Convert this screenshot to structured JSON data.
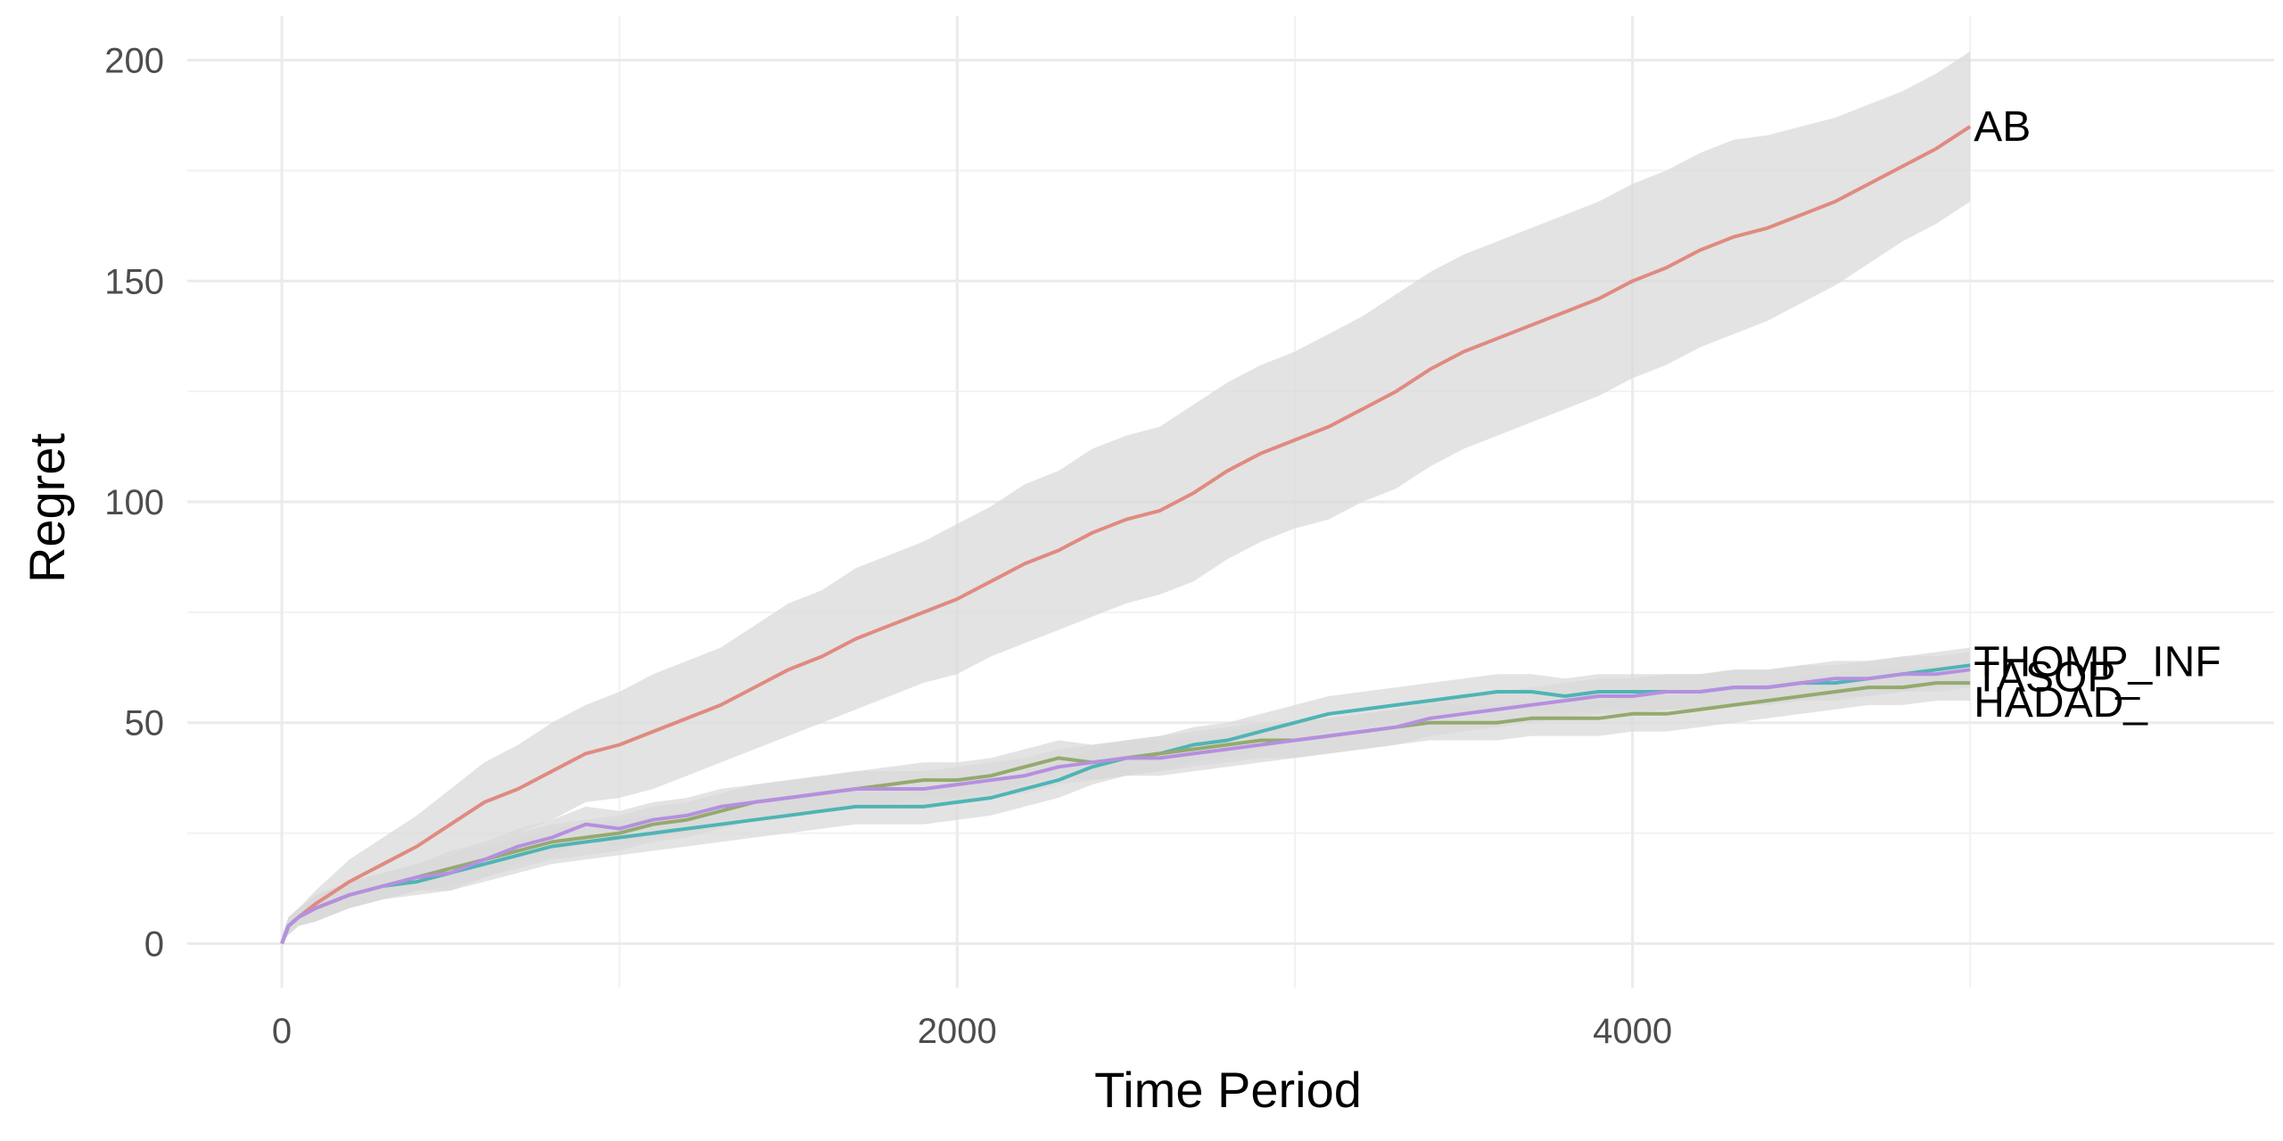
{
  "chart_data": {
    "type": "line",
    "title": "",
    "xlabel": "Time Period",
    "ylabel": "Regret",
    "xlim": [
      -280,
      5900
    ],
    "ylim": [
      -10,
      210
    ],
    "x_ticks": [
      0,
      2000,
      4000
    ],
    "x_tick_labels": [
      "0",
      "2000",
      "4000"
    ],
    "y_ticks": [
      0,
      50,
      100,
      150,
      200
    ],
    "y_tick_labels": [
      "0",
      "50",
      "100",
      "150",
      "200"
    ],
    "grid": true,
    "legend": "none (direct labels at line ends)",
    "band_color": "#d9d9d9",
    "series": [
      {
        "name": "AB",
        "color": "#e08a80",
        "x": [
          0,
          20,
          50,
          100,
          200,
          300,
          400,
          500,
          600,
          700,
          800,
          900,
          1000,
          1100,
          1200,
          1300,
          1400,
          1500,
          1600,
          1700,
          1800,
          1900,
          2000,
          2100,
          2200,
          2300,
          2400,
          2500,
          2600,
          2700,
          2800,
          2900,
          3000,
          3100,
          3200,
          3300,
          3400,
          3500,
          3600,
          3700,
          3800,
          3900,
          4000,
          4100,
          4200,
          4300,
          4400,
          4500,
          4600,
          4700,
          4800,
          4900,
          5000
        ],
        "y": [
          0,
          4,
          6,
          9,
          14,
          18,
          22,
          27,
          32,
          35,
          39,
          43,
          45,
          48,
          51,
          54,
          58,
          62,
          65,
          69,
          72,
          75,
          78,
          82,
          86,
          89,
          93,
          96,
          98,
          102,
          107,
          111,
          114,
          117,
          121,
          125,
          130,
          134,
          137,
          140,
          143,
          146,
          150,
          153,
          157,
          160,
          162,
          165,
          168,
          172,
          176,
          180,
          185
        ],
        "lower": [
          0,
          2,
          4,
          6,
          9,
          12,
          15,
          19,
          23,
          25,
          28,
          32,
          33,
          35,
          38,
          41,
          44,
          47,
          50,
          53,
          56,
          59,
          61,
          65,
          68,
          71,
          74,
          77,
          79,
          82,
          87,
          91,
          94,
          96,
          100,
          103,
          108,
          112,
          115,
          118,
          121,
          124,
          128,
          131,
          135,
          138,
          141,
          145,
          149,
          154,
          159,
          163,
          168
        ],
        "upper": [
          2,
          6,
          8,
          12,
          19,
          24,
          29,
          35,
          41,
          45,
          50,
          54,
          57,
          61,
          64,
          67,
          72,
          77,
          80,
          85,
          88,
          91,
          95,
          99,
          104,
          107,
          112,
          115,
          117,
          122,
          127,
          131,
          134,
          138,
          142,
          147,
          152,
          156,
          159,
          162,
          165,
          168,
          172,
          175,
          179,
          182,
          183,
          185,
          187,
          190,
          193,
          197,
          202
        ]
      },
      {
        "name": "THOMP_INF",
        "color": "#4fb4b4",
        "x": [
          0,
          20,
          50,
          100,
          200,
          300,
          400,
          500,
          600,
          700,
          800,
          900,
          1000,
          1100,
          1200,
          1300,
          1400,
          1500,
          1600,
          1700,
          1800,
          1900,
          2000,
          2100,
          2200,
          2300,
          2400,
          2500,
          2600,
          2700,
          2800,
          2900,
          3000,
          3100,
          3200,
          3300,
          3400,
          3500,
          3600,
          3700,
          3800,
          3900,
          4000,
          4100,
          4200,
          4300,
          4400,
          4500,
          4600,
          4700,
          4800,
          4900,
          5000
        ],
        "y": [
          0,
          4,
          6,
          8,
          11,
          13,
          14,
          16,
          18,
          20,
          22,
          23,
          24,
          25,
          26,
          27,
          28,
          29,
          30,
          31,
          31,
          31,
          32,
          33,
          35,
          37,
          40,
          42,
          43,
          45,
          46,
          48,
          50,
          52,
          53,
          54,
          55,
          56,
          57,
          57,
          56,
          57,
          57,
          57,
          57,
          58,
          58,
          59,
          59,
          60,
          61,
          62,
          63
        ],
        "lower": [
          0,
          2,
          4,
          5,
          8,
          10,
          11,
          12,
          14,
          16,
          18,
          19,
          20,
          21,
          22,
          23,
          24,
          25,
          26,
          27,
          27,
          27,
          28,
          29,
          31,
          33,
          36,
          38,
          39,
          41,
          42,
          44,
          46,
          48,
          49,
          50,
          51,
          52,
          53,
          53,
          52,
          53,
          53,
          53,
          53,
          54,
          54,
          55,
          55,
          56,
          57,
          58,
          59
        ],
        "upper": [
          1,
          6,
          8,
          11,
          14,
          16,
          17,
          20,
          22,
          24,
          26,
          27,
          28,
          29,
          30,
          31,
          32,
          33,
          34,
          35,
          35,
          35,
          36,
          37,
          39,
          41,
          44,
          46,
          47,
          49,
          50,
          52,
          54,
          56,
          57,
          58,
          59,
          60,
          61,
          61,
          60,
          61,
          61,
          61,
          61,
          62,
          62,
          63,
          63,
          64,
          65,
          66,
          67
        ]
      },
      {
        "name": "HADAD_",
        "color": "#93aa6e",
        "x": [
          0,
          20,
          50,
          100,
          200,
          300,
          400,
          500,
          600,
          700,
          800,
          900,
          1000,
          1100,
          1200,
          1300,
          1400,
          1500,
          1600,
          1700,
          1800,
          1900,
          2000,
          2100,
          2200,
          2300,
          2400,
          2500,
          2600,
          2700,
          2800,
          2900,
          3000,
          3100,
          3200,
          3300,
          3400,
          3500,
          3600,
          3700,
          3800,
          3900,
          4000,
          4100,
          4200,
          4300,
          4400,
          4500,
          4600,
          4700,
          4800,
          4900,
          5000
        ],
        "y": [
          0,
          4,
          6,
          8,
          11,
          13,
          15,
          17,
          19,
          21,
          23,
          24,
          25,
          27,
          28,
          30,
          32,
          33,
          34,
          35,
          36,
          37,
          37,
          38,
          40,
          42,
          41,
          42,
          43,
          44,
          45,
          46,
          46,
          47,
          48,
          49,
          50,
          50,
          50,
          51,
          51,
          51,
          52,
          52,
          53,
          54,
          55,
          56,
          57,
          58,
          58,
          59,
          59
        ],
        "lower": [
          0,
          2,
          4,
          5,
          8,
          10,
          12,
          13,
          15,
          17,
          19,
          20,
          21,
          23,
          24,
          26,
          28,
          29,
          30,
          31,
          32,
          33,
          33,
          34,
          36,
          38,
          37,
          38,
          39,
          40,
          41,
          42,
          42,
          43,
          44,
          45,
          46,
          46,
          46,
          47,
          47,
          47,
          48,
          48,
          49,
          50,
          51,
          52,
          53,
          54,
          54,
          55,
          55
        ],
        "upper": [
          1,
          6,
          8,
          11,
          14,
          16,
          18,
          21,
          23,
          25,
          27,
          28,
          29,
          31,
          32,
          34,
          36,
          37,
          38,
          39,
          40,
          41,
          41,
          42,
          44,
          46,
          45,
          46,
          47,
          48,
          49,
          50,
          50,
          51,
          52,
          53,
          54,
          54,
          54,
          55,
          55,
          55,
          56,
          56,
          57,
          58,
          59,
          60,
          61,
          62,
          62,
          63,
          63
        ]
      },
      {
        "name": "TASOP_",
        "color": "#b68fe0",
        "x": [
          0,
          20,
          50,
          100,
          200,
          300,
          400,
          500,
          600,
          700,
          800,
          900,
          1000,
          1100,
          1200,
          1300,
          1400,
          1500,
          1600,
          1700,
          1800,
          1900,
          2000,
          2100,
          2200,
          2300,
          2400,
          2500,
          2600,
          2700,
          2800,
          2900,
          3000,
          3100,
          3200,
          3300,
          3400,
          3500,
          3600,
          3700,
          3800,
          3900,
          4000,
          4100,
          4200,
          4300,
          4400,
          4500,
          4600,
          4700,
          4800,
          4900,
          5000
        ],
        "y": [
          0,
          4,
          6,
          8,
          11,
          13,
          15,
          16,
          19,
          22,
          24,
          27,
          26,
          28,
          29,
          31,
          32,
          33,
          34,
          35,
          35,
          35,
          36,
          37,
          38,
          40,
          41,
          42,
          42,
          43,
          44,
          45,
          46,
          47,
          48,
          49,
          51,
          52,
          53,
          54,
          55,
          56,
          56,
          57,
          57,
          58,
          58,
          59,
          60,
          60,
          61,
          61,
          62
        ],
        "lower": [
          0,
          2,
          4,
          5,
          8,
          10,
          12,
          12,
          15,
          18,
          20,
          23,
          22,
          24,
          25,
          27,
          28,
          29,
          30,
          31,
          31,
          31,
          32,
          33,
          34,
          36,
          37,
          38,
          38,
          39,
          40,
          41,
          42,
          43,
          44,
          45,
          47,
          48,
          49,
          50,
          51,
          52,
          52,
          53,
          53,
          54,
          54,
          55,
          56,
          56,
          57,
          57,
          58
        ],
        "upper": [
          1,
          6,
          8,
          11,
          14,
          16,
          18,
          20,
          23,
          26,
          28,
          31,
          30,
          32,
          33,
          35,
          36,
          37,
          38,
          39,
          39,
          39,
          40,
          41,
          42,
          44,
          45,
          46,
          46,
          47,
          48,
          49,
          50,
          51,
          52,
          53,
          55,
          56,
          57,
          58,
          59,
          60,
          60,
          61,
          61,
          62,
          62,
          63,
          64,
          64,
          65,
          65,
          66
        ]
      }
    ]
  }
}
